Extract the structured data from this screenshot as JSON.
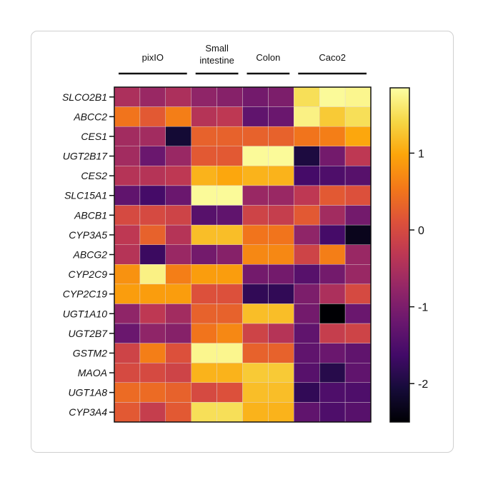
{
  "chart_data": {
    "type": "heatmap",
    "title": "",
    "groups": [
      {
        "label": "pixIO",
        "columns": 3
      },
      {
        "label": "Small\nintestine",
        "columns": 2
      },
      {
        "label": "Colon",
        "columns": 2
      },
      {
        "label": "Caco2",
        "columns": 3
      }
    ],
    "rows": [
      "SLCO2B1",
      "ABCC2",
      "CES1",
      "UGT2B17",
      "CES2",
      "SLC15A1",
      "ABCB1",
      "CYP3A5",
      "ABCG2",
      "CYP2C9",
      "CYP2C19",
      "UGT1A10",
      "UGT2B7",
      "GSTM2",
      "MAOA",
      "UGT1A8",
      "CYP3A4"
    ],
    "values": [
      [
        -0.5,
        -0.7,
        -0.5,
        -0.8,
        -0.9,
        -1.1,
        -1.0,
        1.5,
        1.8,
        1.75
      ],
      [
        0.5,
        0.2,
        0.6,
        -0.4,
        -0.3,
        -1.3,
        -1.2,
        1.7,
        1.3,
        1.5
      ],
      [
        -0.6,
        -0.6,
        -2.1,
        0.3,
        0.3,
        0.3,
        0.3,
        0.5,
        0.6,
        1.0
      ],
      [
        -0.6,
        -1.2,
        -0.7,
        0.2,
        0.2,
        1.8,
        1.8,
        -2.0,
        -1.1,
        -0.3
      ],
      [
        -0.4,
        -0.4,
        -0.3,
        1.1,
        1.0,
        1.1,
        1.1,
        -1.6,
        -1.5,
        -1.4
      ],
      [
        -1.3,
        -1.6,
        -1.2,
        1.8,
        1.8,
        -0.7,
        -0.7,
        -0.3,
        0.2,
        0.1
      ],
      [
        0.0,
        0.0,
        -0.1,
        -1.4,
        -1.3,
        -0.1,
        -0.2,
        0.2,
        -0.6,
        -1.1
      ],
      [
        -0.3,
        0.3,
        -0.4,
        1.2,
        1.2,
        0.5,
        0.5,
        -0.8,
        -1.6,
        -2.3
      ],
      [
        -0.4,
        -1.7,
        -0.7,
        -1.1,
        -0.9,
        0.7,
        0.7,
        -0.1,
        0.6,
        -0.7
      ],
      [
        0.8,
        1.7,
        0.6,
        0.9,
        0.9,
        -1.1,
        -1.1,
        -1.4,
        -1.1,
        -0.7
      ],
      [
        0.9,
        0.9,
        0.9,
        0.1,
        0.1,
        -1.8,
        -1.8,
        -1.0,
        -0.5,
        0.0
      ],
      [
        -0.8,
        -0.3,
        -0.6,
        0.3,
        0.3,
        1.2,
        1.2,
        -1.1,
        -2.5,
        -1.2
      ],
      [
        -1.2,
        -0.8,
        -0.9,
        0.5,
        0.7,
        -0.1,
        -0.4,
        -1.3,
        -0.2,
        -0.1
      ],
      [
        -0.1,
        0.6,
        0.1,
        1.75,
        1.75,
        0.3,
        0.3,
        -1.3,
        -1.2,
        -1.3
      ],
      [
        0.0,
        0.0,
        -0.1,
        1.1,
        1.1,
        1.3,
        1.3,
        -1.4,
        -1.9,
        -1.3
      ],
      [
        0.4,
        0.4,
        0.3,
        0.0,
        0.1,
        1.2,
        1.2,
        -1.8,
        -1.5,
        -1.5
      ],
      [
        0.2,
        -0.2,
        0.2,
        1.5,
        1.5,
        1.1,
        1.1,
        -1.3,
        -1.5,
        -1.4
      ]
    ],
    "colormap": "inferno",
    "colorbar": {
      "min": -2.5,
      "max": 1.85,
      "ticks": [
        1,
        0,
        -1,
        -2
      ],
      "tick_labels": [
        "1",
        "0",
        "-1",
        "-2"
      ]
    },
    "cell_stroke": "#e0d6d8",
    "border_color": "#111111",
    "text_color": "#111111"
  }
}
